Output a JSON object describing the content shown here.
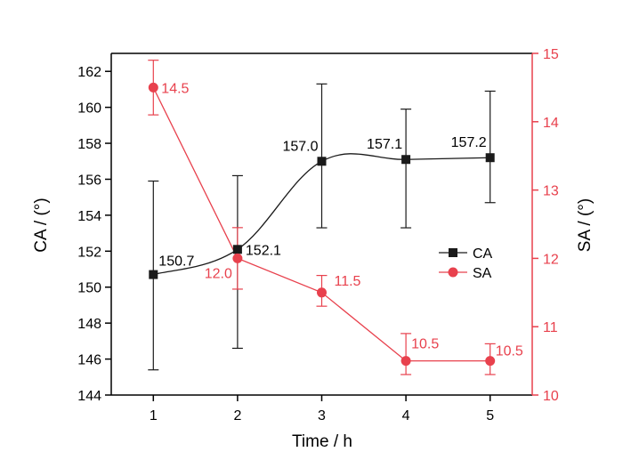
{
  "chart_data": {
    "type": "line",
    "xlabel": "Time / h",
    "ylabel_left": "CA / (°)",
    "ylabel_right": "SA / (°)",
    "x": [
      1,
      2,
      3,
      4,
      5
    ],
    "x_ticks": [
      "1",
      "2",
      "3",
      "4",
      "5"
    ],
    "xlim": [
      0.5,
      5.5
    ],
    "ylim_left": [
      144,
      163
    ],
    "yticks_left": [
      "144",
      "146",
      "148",
      "150",
      "152",
      "154",
      "156",
      "158",
      "160",
      "162"
    ],
    "ylim_right": [
      10,
      15
    ],
    "yticks_right": [
      "10",
      "11",
      "12",
      "13",
      "14",
      "15"
    ],
    "grid": false,
    "legend_position": "right",
    "series": [
      {
        "name": "CA",
        "axis": "left",
        "color": "#1a1a1a",
        "marker": "square",
        "smooth": true,
        "values": [
          150.7,
          152.1,
          157.0,
          157.1,
          157.2
        ],
        "labels": [
          "150.7",
          "152.1",
          "157.0",
          "157.1",
          "157.2"
        ],
        "error_low": [
          145.4,
          146.6,
          153.3,
          153.3,
          154.7
        ],
        "error_high": [
          155.9,
          156.2,
          161.3,
          159.9,
          160.9
        ]
      },
      {
        "name": "SA",
        "axis": "right",
        "color": "#e8414d",
        "marker": "circle",
        "smooth": false,
        "values": [
          14.5,
          12.0,
          11.5,
          10.5,
          10.5
        ],
        "labels": [
          "14.5",
          "12.0",
          "11.5",
          "10.5",
          "10.5"
        ],
        "error_low": [
          14.1,
          11.55,
          11.3,
          10.3,
          10.3
        ],
        "error_high": [
          14.9,
          12.45,
          11.75,
          10.9,
          10.75
        ]
      }
    ]
  }
}
